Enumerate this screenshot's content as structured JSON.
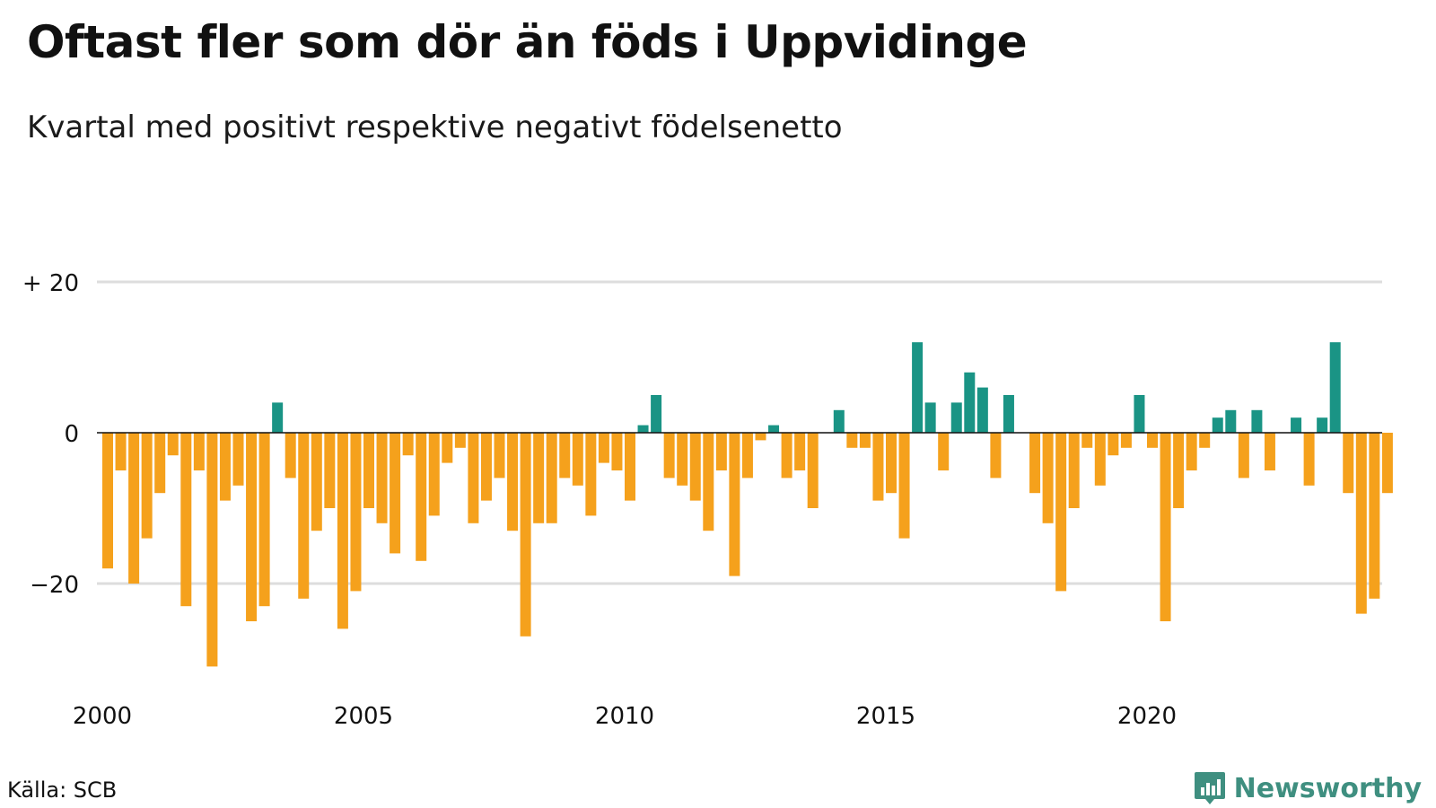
{
  "title": "Oftast fler som dör än föds i Uppvidinge",
  "subtitle": "Kvartal med positivt respektive negativt födelsenetto",
  "source": "Källa: SCB",
  "brand": {
    "name": "Newsworthy",
    "icon": "bar-chart-speech-bubble-icon",
    "color": "#3f8f80"
  },
  "colors": {
    "positive": "#1a9485",
    "negative": "#f5a11c",
    "gridline": "#dddddd",
    "zeroline": "#111111"
  },
  "chart_data": {
    "type": "bar",
    "title": "Oftast fler som dör än föds i Uppvidinge",
    "subtitle": "Kvartal med positivt respektive negativt födelsenetto",
    "xlabel": "",
    "ylabel": "",
    "period": "quarter",
    "first_period": "2000 Q1",
    "ylim": [
      -32,
      32
    ],
    "yticks": [
      20,
      0,
      -20
    ],
    "ytick_labels": [
      "+ 20",
      "0",
      "−20"
    ],
    "xtick_labels": [
      "2000",
      "2005",
      "2010",
      "2015",
      "2020"
    ],
    "grid": true,
    "legend": "none",
    "values": [
      -18,
      -5,
      -20,
      -14,
      -8,
      -3,
      -23,
      -5,
      -31,
      -9,
      -7,
      -25,
      -23,
      4,
      -6,
      -22,
      -13,
      -10,
      -26,
      -21,
      -10,
      -12,
      -16,
      -3,
      -17,
      -11,
      -4,
      -2,
      -12,
      -9,
      -6,
      -13,
      -27,
      -12,
      -12,
      -6,
      -7,
      -11,
      -4,
      -5,
      -9,
      1,
      5,
      -6,
      -7,
      -9,
      -13,
      -5,
      -19,
      -6,
      -1,
      1,
      -6,
      -5,
      -10,
      0,
      3,
      -2,
      -2,
      -9,
      -8,
      -14,
      12,
      4,
      -5,
      4,
      8,
      6,
      -6,
      5,
      0,
      -8,
      -12,
      -21,
      -10,
      -2,
      -7,
      -3,
      -2,
      5,
      -2,
      -25,
      -10,
      -5,
      -2,
      2,
      3,
      -6,
      3,
      -5,
      0,
      2,
      -7,
      2,
      12,
      -8,
      -24,
      -22,
      -8
    ]
  }
}
